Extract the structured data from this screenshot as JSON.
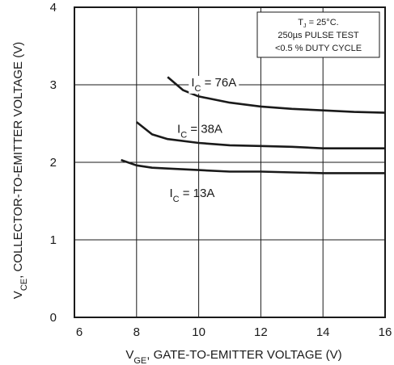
{
  "chart_data": {
    "type": "line",
    "xlabel": {
      "main": "V",
      "sub": "GE",
      "rest": ", GATE-TO-EMITTER VOLTAGE (V)"
    },
    "ylabel": {
      "main": "V",
      "sub": "CE",
      "rest": ", COLLECTOR-TO-EMITTER VOLTAGE (V)"
    },
    "xlim": [
      6,
      16
    ],
    "ylim": [
      0,
      4
    ],
    "xticks": [
      "6",
      "8",
      "10",
      "12",
      "14",
      "16"
    ],
    "yticks": [
      "0",
      "1",
      "2",
      "3",
      "4"
    ],
    "grid": true,
    "conditions": [
      "T = 25°C.",
      "250µs PULSE TEST",
      "<0.5 % DUTY CYCLE"
    ],
    "conditions_sub": "J",
    "series": [
      {
        "name": "I_C = 76A",
        "label": {
          "main": "I",
          "sub": "C",
          "rest": " = 76A"
        },
        "x": [
          9.0,
          9.5,
          10.0,
          11.0,
          12.0,
          13.0,
          14.0,
          15.0,
          16.0
        ],
        "y": [
          3.1,
          2.93,
          2.85,
          2.77,
          2.72,
          2.69,
          2.67,
          2.65,
          2.64
        ]
      },
      {
        "name": "I_C = 38A",
        "label": {
          "main": "I",
          "sub": "C",
          "rest": " = 38A"
        },
        "x": [
          8.0,
          8.5,
          9.0,
          10.0,
          11.0,
          12.0,
          13.0,
          14.0,
          15.0,
          16.0
        ],
        "y": [
          2.52,
          2.36,
          2.3,
          2.25,
          2.22,
          2.21,
          2.2,
          2.18,
          2.18,
          2.18
        ]
      },
      {
        "name": "I_C = 13A",
        "label": {
          "main": "I",
          "sub": "C",
          "rest": " = 13A"
        },
        "x": [
          7.5,
          8.0,
          8.5,
          9.0,
          10.0,
          11.0,
          12.0,
          13.0,
          14.0,
          15.0,
          16.0
        ],
        "y": [
          2.03,
          1.96,
          1.93,
          1.92,
          1.9,
          1.88,
          1.88,
          1.87,
          1.86,
          1.86,
          1.86
        ]
      }
    ]
  }
}
